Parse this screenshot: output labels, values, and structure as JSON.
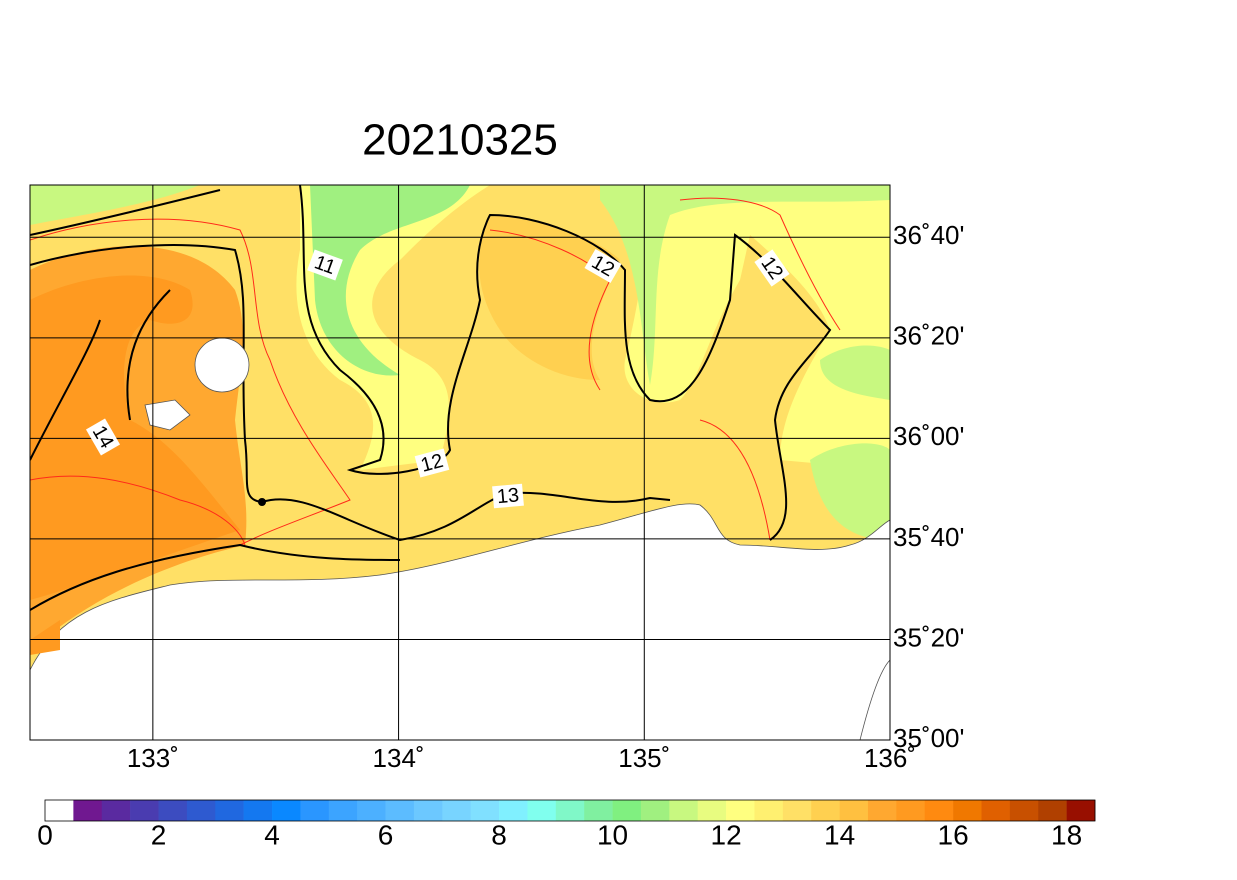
{
  "title": "20210325",
  "map": {
    "xlim": [
      132.5,
      136.0
    ],
    "ylim": [
      35.0,
      36.84
    ],
    "xticks": [
      {
        "value": 133,
        "label": "133˚"
      },
      {
        "value": 134,
        "label": "134˚"
      },
      {
        "value": 135,
        "label": "135˚"
      },
      {
        "value": 136,
        "label": "136˚"
      }
    ],
    "yticks": [
      {
        "value": 35.0,
        "label": "35˚00'"
      },
      {
        "value": 35.3333,
        "label": "35˚20'"
      },
      {
        "value": 35.6667,
        "label": "35˚40'"
      },
      {
        "value": 36.0,
        "label": "36˚00'"
      },
      {
        "value": 36.3333,
        "label": "36˚20'"
      },
      {
        "value": 36.6667,
        "label": "36˚40'"
      }
    ],
    "contour_labels": [
      11,
      12,
      12,
      12,
      13,
      14
    ]
  },
  "colorbar": {
    "range": [
      0,
      18.5
    ],
    "ticks": [
      0,
      2,
      4,
      6,
      8,
      10,
      12,
      14,
      16,
      18
    ],
    "colors": [
      "#ffffff",
      "#701890",
      "#5a2aa0",
      "#4a3cb0",
      "#3c4cc0",
      "#2e5ad0",
      "#2068e0",
      "#1478f0",
      "#0a88ff",
      "#2a96ff",
      "#3ca4ff",
      "#4cb0ff",
      "#5cbcff",
      "#6cc8ff",
      "#78d4ff",
      "#80e0ff",
      "#80f0ff",
      "#80ffee",
      "#80f8c8",
      "#80f0a0",
      "#80f080",
      "#a0f080",
      "#c8f880",
      "#e8fc80",
      "#ffff80",
      "#fff070",
      "#ffe066",
      "#ffd050",
      "#ffc040",
      "#ffa830",
      "#ff9a20",
      "#ff8a10",
      "#f07800",
      "#e06000",
      "#c85000",
      "#b04000",
      "#980f00"
    ]
  }
}
